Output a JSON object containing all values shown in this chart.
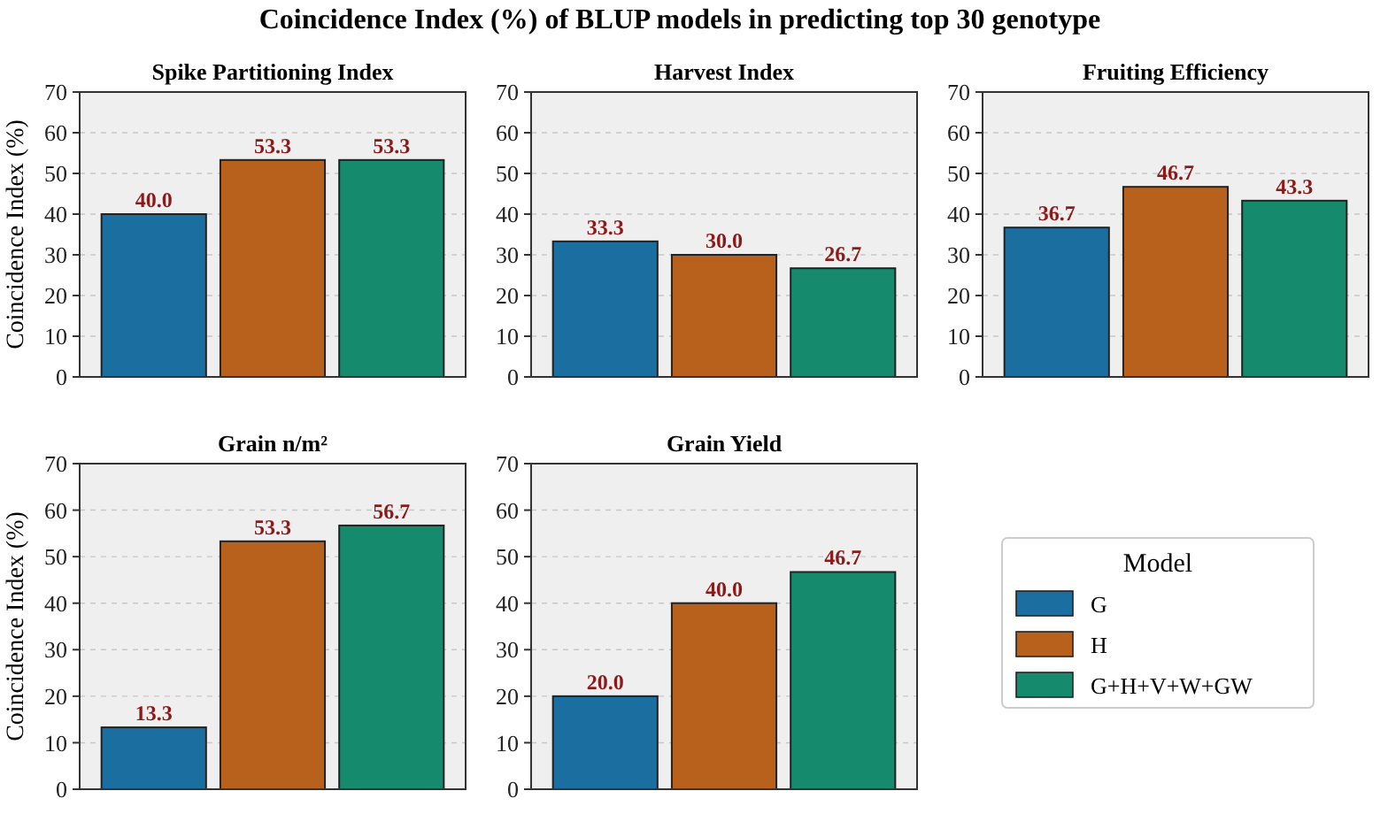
{
  "chart_data": [
    {
      "type": "bar",
      "title": "Spike Partitioning Index",
      "ylabel": "Coincidence Index (%)",
      "annotations": [
        "Coincidence Index (%) of BLUP models in predicting top 30 genotype"
      ],
      "categories": [
        null
      ],
      "series": [
        {
          "color": "#1a6fa0",
          "values": [
            40.0
          ],
          "value_labels": [
            "40.0"
          ]
        },
        {
          "color": "#b8611d",
          "values": [
            53.3
          ],
          "value_labels": [
            "53.3"
          ]
        },
        {
          "color": "#168a6c",
          "values": [
            53.3
          ],
          "value_labels": [
            "53.3"
          ]
        }
      ],
      "ylim": [
        0,
        70
      ],
      "yticks": [
        0,
        10,
        20,
        30,
        40,
        50,
        60,
        70
      ],
      "grid": "y",
      "legend": false
    },
    {
      "type": "bar",
      "title": "Harvest Index",
      "categories": [
        null
      ],
      "series": [
        {
          "color": "#1a6fa0",
          "values": [
            33.3
          ],
          "value_labels": [
            "33.3"
          ]
        },
        {
          "color": "#b8611d",
          "values": [
            30.0
          ],
          "value_labels": [
            "30.0"
          ]
        },
        {
          "color": "#168a6c",
          "values": [
            26.7
          ],
          "value_labels": [
            "26.7"
          ]
        }
      ],
      "ylim": [
        0,
        70
      ],
      "yticks": [
        0,
        10,
        20,
        30,
        40,
        50,
        60,
        70
      ],
      "grid": "y",
      "legend": false
    },
    {
      "type": "bar",
      "title": "Fruiting Efficiency",
      "categories": [
        null
      ],
      "series": [
        {
          "color": "#1a6fa0",
          "values": [
            36.7
          ],
          "value_labels": [
            "36.7"
          ]
        },
        {
          "color": "#b8611d",
          "values": [
            46.7
          ],
          "value_labels": [
            "46.7"
          ]
        },
        {
          "color": "#168a6c",
          "values": [
            43.3
          ],
          "value_labels": [
            "43.3"
          ]
        }
      ],
      "ylim": [
        0,
        70
      ],
      "yticks": [
        0,
        10,
        20,
        30,
        40,
        50,
        60,
        70
      ],
      "grid": "y",
      "legend": false
    },
    {
      "type": "bar",
      "title": "Grain n/m²",
      "ylabel": "Coincidence Index (%)",
      "categories": [
        null
      ],
      "series": [
        {
          "color": "#1a6fa0",
          "values": [
            13.3
          ],
          "value_labels": [
            "13.3"
          ]
        },
        {
          "color": "#b8611d",
          "values": [
            53.3
          ],
          "value_labels": [
            "53.3"
          ]
        },
        {
          "color": "#168a6c",
          "values": [
            56.7
          ],
          "value_labels": [
            "56.7"
          ]
        }
      ],
      "ylim": [
        0,
        70
      ],
      "yticks": [
        0,
        10,
        20,
        30,
        40,
        50,
        60,
        70
      ],
      "grid": "y",
      "legend": false
    },
    {
      "type": "bar",
      "title": "Grain Yield",
      "categories": [
        null
      ],
      "legend_title": "Model",
      "series": [
        {
          "name": "G",
          "color": "#1a6fa0",
          "values": [
            20.0
          ],
          "value_labels": [
            "20.0"
          ]
        },
        {
          "name": "H",
          "color": "#b8611d",
          "values": [
            40.0
          ],
          "value_labels": [
            "40.0"
          ]
        },
        {
          "name": "G+H+V+W+GW",
          "color": "#168a6c",
          "values": [
            46.7
          ],
          "value_labels": [
            "46.7"
          ]
        }
      ],
      "ylim": [
        0,
        70
      ],
      "yticks": [
        0,
        10,
        20,
        30,
        40,
        50,
        60,
        70
      ],
      "grid": "y",
      "legend": "right"
    }
  ]
}
